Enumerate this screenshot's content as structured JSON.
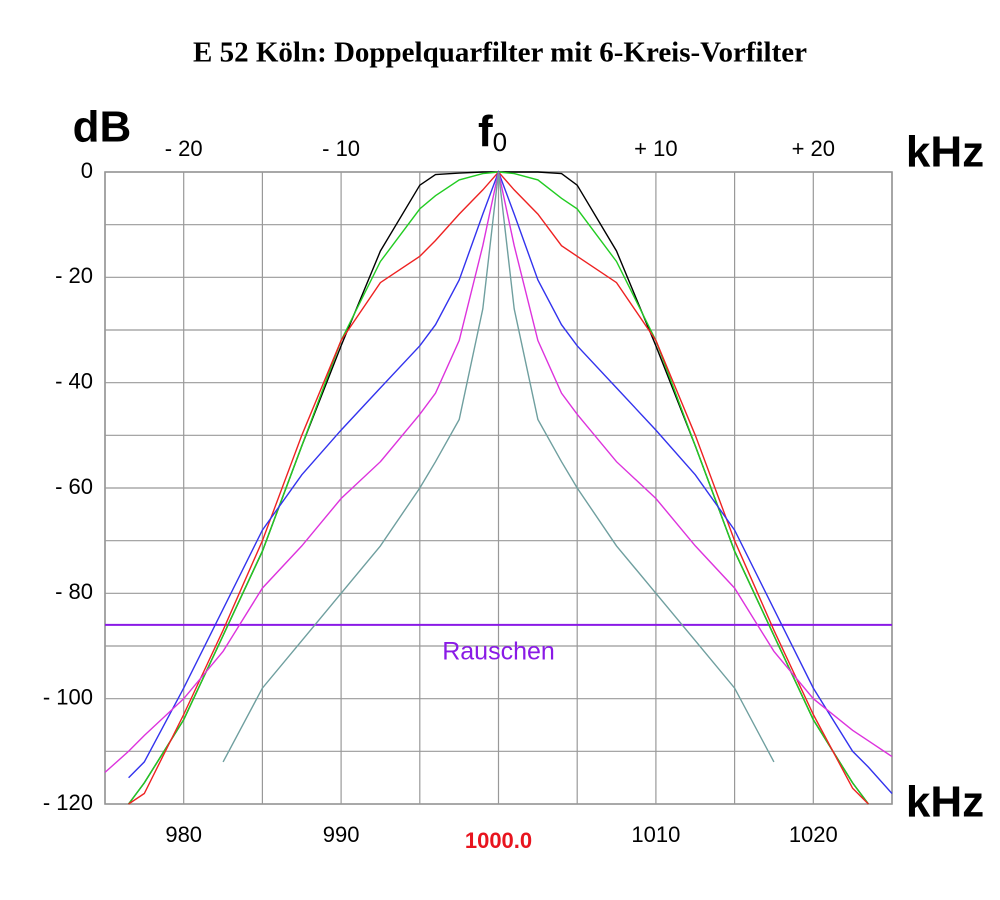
{
  "chart_data": {
    "type": "line",
    "title": "E 52 Köln: Doppelquarfilter mit 6-Kreis-Vorfilter",
    "ylabel": "dB",
    "x2label": "kHz",
    "xlabel": "kHz",
    "xlim": [
      975,
      1025
    ],
    "ylim": [
      -120,
      0
    ],
    "xticks": [
      980,
      990,
      {
        "value": 1000,
        "label": "1000.0",
        "color": "#e8141e"
      },
      1010,
      1020
    ],
    "x2ticks": [
      {
        "value": 980,
        "label": "- 20"
      },
      {
        "value": 990,
        "label": "- 10"
      },
      {
        "value": 1000,
        "label": "f",
        "subscript": "0"
      },
      {
        "value": 1010,
        "label": "+ 10"
      },
      {
        "value": 1020,
        "label": "+ 20"
      }
    ],
    "xticks_minor": [
      985,
      995,
      1005,
      1015
    ],
    "yticks": [
      {
        "value": -120,
        "label": "- 120"
      },
      {
        "value": -100,
        "label": "- 100"
      },
      {
        "value": -80,
        "label": "- 80"
      },
      {
        "value": -60,
        "label": "- 60"
      },
      {
        "value": -40,
        "label": "- 40"
      },
      {
        "value": -20,
        "label": "- 20"
      },
      0
    ],
    "yticks_minor": [
      -110,
      -90,
      -70,
      -50,
      -30,
      -10
    ],
    "grid": true,
    "x": [
      975,
      976.5,
      977.5,
      980,
      982.5,
      985,
      987.5,
      990,
      992.5,
      995,
      996,
      997.5,
      999,
      1000,
      1001,
      1002.5,
      1004,
      1005,
      1007.5,
      1010,
      1012.5,
      1015,
      1017.5,
      1020,
      1022.5,
      1023.5,
      1025
    ],
    "series": [
      {
        "color": "#000000",
        "values": [
          null,
          -120,
          -116,
          -104,
          -88,
          -72,
          -52,
          -33,
          -15,
          -2.5,
          -0.5,
          -0.2,
          0,
          0,
          0,
          0,
          -0.3,
          -2.5,
          -15,
          -33,
          -52,
          -72,
          -88,
          -104,
          -116,
          -120,
          null
        ]
      },
      {
        "color": "#22cc22",
        "values": [
          null,
          -120,
          -116,
          -104,
          -88,
          -72,
          -52,
          -32,
          -17,
          -7,
          -4.5,
          -1.5,
          -0.3,
          0,
          -0.3,
          -1.5,
          -5,
          -7,
          -17,
          -32,
          -52,
          -72,
          -88,
          -104,
          -116,
          -120,
          null
        ]
      },
      {
        "color": "#ee2222",
        "values": [
          null,
          -120,
          -118,
          -103,
          -87,
          -70,
          -50,
          -32,
          -21,
          -16,
          -13,
          -8,
          -3.4,
          0,
          -3.4,
          -8,
          -14,
          -16,
          -21,
          -32,
          -50,
          -70,
          -87,
          -103,
          -117,
          -120,
          null
        ]
      },
      {
        "color": "#3333ee",
        "values": [
          null,
          -115,
          -112,
          -98,
          -83,
          -68,
          -57.5,
          -49,
          -41,
          -33,
          -29,
          -20.5,
          -8,
          0,
          -8,
          -20.5,
          -29,
          -33,
          -41,
          -49,
          -57.5,
          -68,
          -83,
          -98,
          -110,
          -113,
          -118
        ]
      },
      {
        "color": "#dd33dd",
        "values": [
          -114,
          -110,
          -107,
          -100,
          -91,
          -79,
          -71,
          -62,
          -55,
          -46,
          -42,
          -32,
          -14,
          0,
          -14,
          -32,
          -42,
          -46,
          -55,
          -62,
          -71,
          -79,
          -91,
          -100,
          -106,
          -108,
          -111
        ]
      },
      {
        "color": "#6f9f9f",
        "values": [
          null,
          null,
          null,
          null,
          -112,
          -98,
          -89,
          -80,
          -71,
          -60,
          -55,
          -47,
          -26,
          0,
          -26,
          -47,
          -55,
          -60,
          -71,
          -80,
          -89,
          -98,
          -112,
          null,
          null,
          null,
          null
        ]
      }
    ],
    "hlines": [
      {
        "value": -86,
        "label": "Rauschen",
        "color": "#8a1ae6"
      }
    ]
  }
}
